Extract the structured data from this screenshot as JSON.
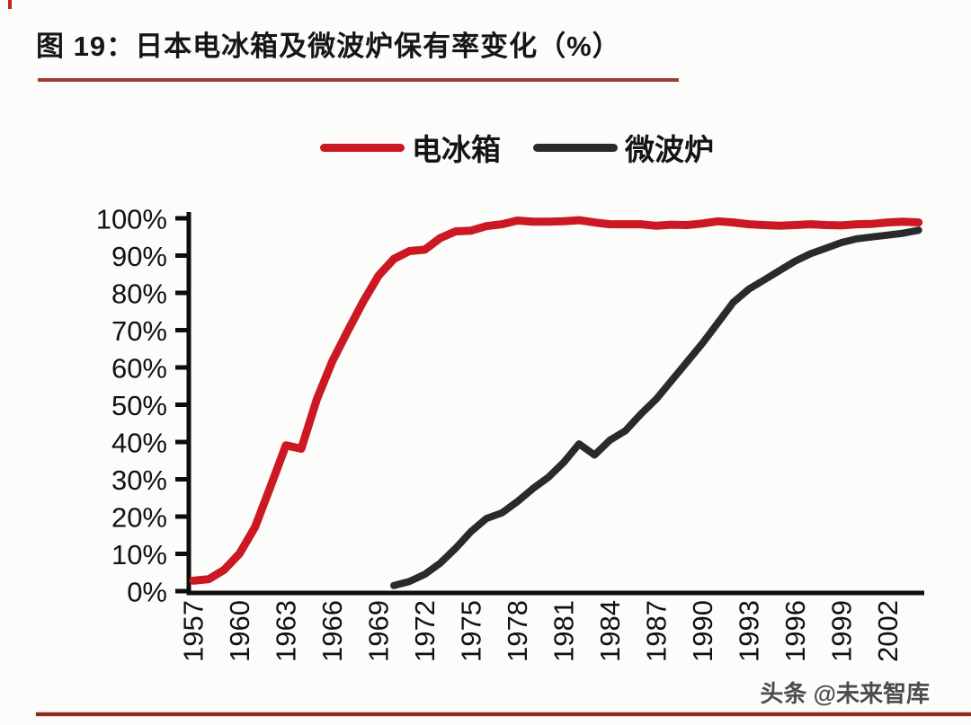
{
  "page": {
    "title": "图 19：日本电冰箱及微波炉保有率变化（%）",
    "watermark": "头条 @未来智库",
    "accent_red": "#cb1822",
    "title_underline_red": "#a63a2e",
    "bottom_rule_red": "#8f2c20"
  },
  "legend": [
    {
      "label": "电冰箱",
      "color": "#cb1822"
    },
    {
      "label": "微波炉",
      "color": "#2a2a2a"
    }
  ],
  "chart_data": {
    "type": "line",
    "title": "日本电冰箱及微波炉保有率变化（%）",
    "xlabel": "",
    "ylabel": "",
    "ylim": [
      0,
      100
    ],
    "grid": false,
    "legend_position": "top-center",
    "yticks": [
      {
        "value": 0,
        "label": "0%"
      },
      {
        "value": 10,
        "label": "10%"
      },
      {
        "value": 20,
        "label": "20%"
      },
      {
        "value": 30,
        "label": "30%"
      },
      {
        "value": 40,
        "label": "40%"
      },
      {
        "value": 50,
        "label": "50%"
      },
      {
        "value": 60,
        "label": "60%"
      },
      {
        "value": 70,
        "label": "70%"
      },
      {
        "value": 80,
        "label": "80%"
      },
      {
        "value": 90,
        "label": "90%"
      },
      {
        "value": 100,
        "label": "100%"
      }
    ],
    "xticks": [
      {
        "year": 1957,
        "label": "1957"
      },
      {
        "year": 1960,
        "label": "1960"
      },
      {
        "year": 1963,
        "label": "1963"
      },
      {
        "year": 1966,
        "label": "1966"
      },
      {
        "year": 1969,
        "label": "1969"
      },
      {
        "year": 1972,
        "label": "1972"
      },
      {
        "year": 1975,
        "label": "1975"
      },
      {
        "year": 1978,
        "label": "1978"
      },
      {
        "year": 1981,
        "label": "1981"
      },
      {
        "year": 1984,
        "label": "1984"
      },
      {
        "year": 1987,
        "label": "1987"
      },
      {
        "year": 1990,
        "label": "1990"
      },
      {
        "year": 1993,
        "label": "1993"
      },
      {
        "year": 1996,
        "label": "1996"
      },
      {
        "year": 1999,
        "label": "1999"
      },
      {
        "year": 2002,
        "label": "2002"
      }
    ],
    "series": [
      {
        "key": "refrigerator",
        "name": "电冰箱",
        "color": "#cb1822",
        "x": [
          1957,
          1958,
          1959,
          1960,
          1961,
          1962,
          1963,
          1964,
          1965,
          1966,
          1967,
          1968,
          1969,
          1970,
          1971,
          1972,
          1973,
          1974,
          1975,
          1976,
          1977,
          1978,
          1979,
          1980,
          1981,
          1982,
          1983,
          1984,
          1985,
          1986,
          1987,
          1988,
          1989,
          1990,
          1991,
          1992,
          1993,
          1994,
          1995,
          1996,
          1997,
          1998,
          1999,
          2000,
          2001,
          2002,
          2003,
          2004
        ],
        "values": [
          2.8,
          3.2,
          5.7,
          10.1,
          17.2,
          28.0,
          39.1,
          38.2,
          51.4,
          61.6,
          69.7,
          77.6,
          84.6,
          89.1,
          91.2,
          91.6,
          94.7,
          96.5,
          96.7,
          97.9,
          98.4,
          99.4,
          99.1,
          99.1,
          99.2,
          99.5,
          98.9,
          98.4,
          98.4,
          98.4,
          98.0,
          98.3,
          98.2,
          98.6,
          99.2,
          98.9,
          98.4,
          98.2,
          98.0,
          98.2,
          98.4,
          98.2,
          98.1,
          98.4,
          98.5,
          98.9,
          99.1,
          98.9
        ]
      },
      {
        "key": "microwave",
        "name": "微波炉",
        "color": "#2a2a2a",
        "x": [
          1970,
          1971,
          1972,
          1973,
          1974,
          1975,
          1976,
          1977,
          1978,
          1979,
          1980,
          1981,
          1982,
          1983,
          1984,
          1985,
          1986,
          1987,
          1988,
          1989,
          1990,
          1991,
          1992,
          1993,
          1994,
          1995,
          1996,
          1997,
          1998,
          1999,
          2000,
          2001,
          2002,
          2003,
          2004
        ],
        "values": [
          1.5,
          2.6,
          4.5,
          7.5,
          11.5,
          16.0,
          19.5,
          21.0,
          24.0,
          27.5,
          30.5,
          34.5,
          39.5,
          36.5,
          40.5,
          43.0,
          47.5,
          51.5,
          56.5,
          61.5,
          66.5,
          72.0,
          77.5,
          81.0,
          83.5,
          86.0,
          88.5,
          90.5,
          92.0,
          93.5,
          94.5,
          95.0,
          95.5,
          96.0,
          96.8
        ]
      }
    ]
  }
}
